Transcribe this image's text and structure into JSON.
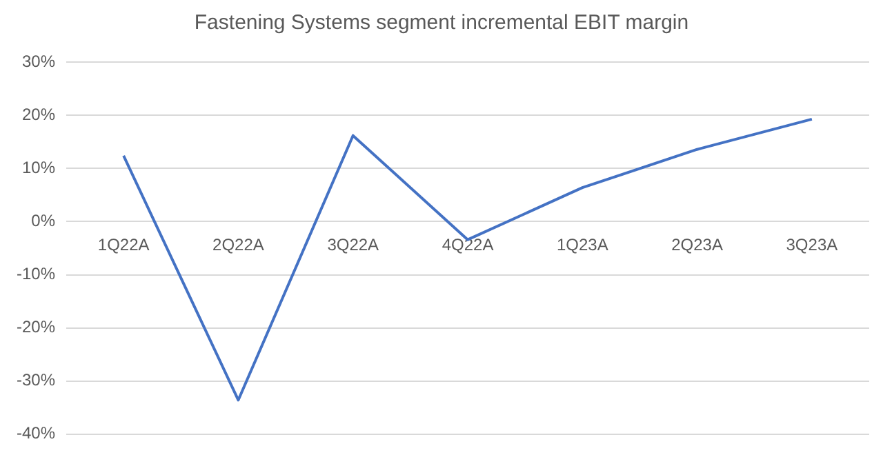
{
  "chart_data": {
    "type": "line",
    "title": "Fastening Systems segment incremental EBIT margin",
    "categories": [
      "1Q22A",
      "2Q22A",
      "3Q22A",
      "4Q22A",
      "1Q23A",
      "2Q23A",
      "3Q23A"
    ],
    "series": [
      {
        "color": "#4472c4",
        "values": [
          12.4,
          -33.6,
          16.2,
          -3.4,
          6.4,
          13.6,
          19.3
        ]
      }
    ],
    "ylim": [
      -40,
      30
    ],
    "yticks": [
      {
        "value": -40,
        "label": "-40%"
      },
      {
        "value": -30,
        "label": "-30%"
      },
      {
        "value": -20,
        "label": "-20%"
      },
      {
        "value": -10,
        "label": "-10%"
      },
      {
        "value": 0,
        "label": "0%"
      },
      {
        "value": 10,
        "label": "10%"
      },
      {
        "value": 20,
        "label": "20%"
      },
      {
        "value": 30,
        "label": "30%"
      }
    ],
    "grid": "y",
    "marker": "none",
    "line_style": "solid"
  }
}
